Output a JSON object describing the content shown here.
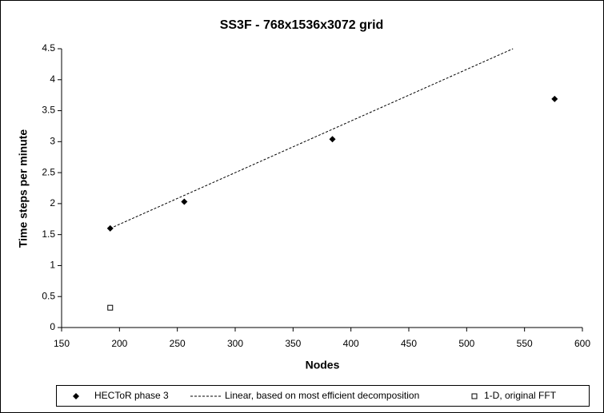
{
  "chart_data": {
    "type": "scatter",
    "title": "SS3F - 768x1536x3072 grid",
    "x_label": "Nodes",
    "y_label": "Time steps per minute",
    "series": [
      {
        "name": "HECToR phase 3",
        "color": "#000000",
        "marker": "diamond",
        "x": [
          192,
          256,
          384,
          576
        ],
        "values": [
          1.6,
          2.03,
          3.04,
          3.69
        ]
      },
      {
        "name": "Linear, based on most efficient decomposition",
        "color": "#000000",
        "marker": "dashed-line",
        "x": [
          192,
          540
        ],
        "values": [
          1.6,
          4.5
        ]
      },
      {
        "name": "1-D, original FFT",
        "color": "#000000",
        "marker": "square",
        "x": [
          192
        ],
        "values": [
          0.32
        ]
      }
    ],
    "xlim": [
      150,
      600
    ],
    "xticks": [
      150,
      200,
      250,
      300,
      350,
      400,
      450,
      500,
      550,
      600
    ],
    "ylim": [
      0,
      4.5
    ],
    "yticks": [
      0,
      0.5,
      1,
      1.5,
      2,
      2.5,
      3,
      3.5,
      4,
      4.5
    ],
    "grid": false,
    "legend": "bottom"
  }
}
